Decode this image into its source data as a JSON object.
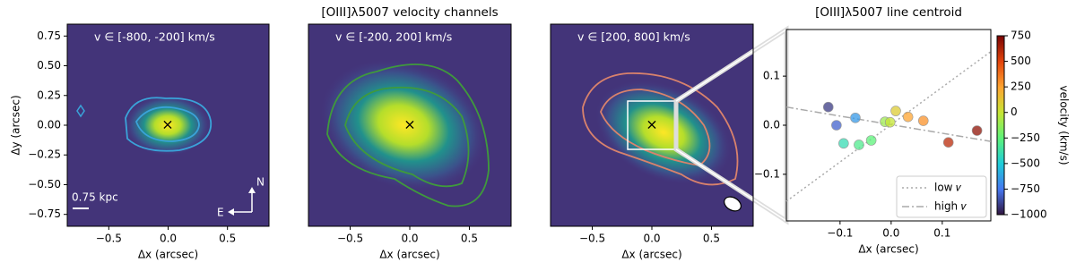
{
  "chart_data": [
    {
      "type": "image",
      "annotation": "v ∈ [-800, -200] km/s",
      "xlabel": "Δx (arcsec)",
      "ylabel": "Δy (arcsec)",
      "xlim": [
        -0.85,
        0.85
      ],
      "ylim": [
        -0.85,
        0.85
      ],
      "xticks": [
        {
          "value": -0.5,
          "label": "−0.5"
        },
        {
          "value": 0,
          "label": "0.0"
        },
        0.5
      ],
      "yticks": [
        {
          "value": -0.75,
          "label": "−0.75"
        },
        {
          "value": -0.5,
          "label": "−0.50"
        },
        {
          "value": -0.25,
          "label": "−0.25"
        },
        {
          "value": 0,
          "label": "0.00"
        },
        0.25,
        {
          "value": 0.5,
          "label": "0.50"
        },
        0.75
      ],
      "scale_bar": "0.75 kpc",
      "compass": [
        "N",
        "E"
      ],
      "contour_color": "#3aa3d9"
    },
    {
      "type": "image",
      "title": "[OIII]λ5007 velocity channels",
      "annotation": "v ∈ [-200, 200] km/s",
      "xlabel": "Δx (arcsec)",
      "xlim": [
        -0.85,
        0.85
      ],
      "ylim": [
        -0.85,
        0.85
      ],
      "xticks": [
        {
          "value": -0.5,
          "label": "−0.5"
        },
        {
          "value": 0,
          "label": "0.0"
        },
        0.5
      ],
      "contour_color": "#3f9a3c"
    },
    {
      "type": "image",
      "annotation": "v ∈ [200, 800] km/s",
      "xlabel": "Δx (arcsec)",
      "xlim": [
        -0.85,
        0.85
      ],
      "ylim": [
        -0.85,
        0.85
      ],
      "xticks": [
        {
          "value": -0.5,
          "label": "−0.5"
        },
        {
          "value": 0,
          "label": "0.0"
        },
        0.5
      ],
      "contour_color": "#d9826c"
    },
    {
      "type": "scatter",
      "title": "[OIII]λ5007 line centroid",
      "xlabel": "Δx (arcsec)",
      "xlim": [
        -0.205,
        0.195
      ],
      "ylim": [
        -0.195,
        0.195
      ],
      "xticks": [
        {
          "value": -0.1,
          "label": "−0.1"
        },
        {
          "value": 0,
          "label": "0.0"
        },
        0.1
      ],
      "yticks": [
        {
          "value": -0.1,
          "label": "−0.1"
        },
        {
          "value": 0,
          "label": "0.0"
        },
        0.1
      ],
      "x": [
        -0.123,
        -0.107,
        -0.07,
        -0.093,
        -0.063,
        -0.039,
        -0.012,
        -0.002,
        0.009,
        0.033,
        0.063,
        0.112,
        0.168
      ],
      "y": [
        0.037,
        0.0,
        0.015,
        -0.037,
        -0.04,
        -0.031,
        0.007,
        0.006,
        0.029,
        0.017,
        0.009,
        -0.035,
        -0.011
      ],
      "values": [
        -900,
        -800,
        -650,
        -400,
        -300,
        -250,
        -100,
        0,
        100,
        250,
        300,
        600,
        700
      ],
      "colorbar": {
        "label": "velocity (km/s)",
        "lim": [
          -1000,
          750
        ],
        "ticks": [
          {
            "value": -1000,
            "label": "−1000"
          },
          {
            "value": -750,
            "label": "−750"
          },
          {
            "value": -500,
            "label": "−500"
          },
          {
            "value": -250,
            "label": "−250"
          },
          0,
          250,
          500,
          750
        ],
        "colormap": [
          "#30123b",
          "#4676f0",
          "#1ecbd9",
          "#5cf27a",
          "#c6e534",
          "#fea431",
          "#e4440b",
          "#7a0403"
        ]
      },
      "lines": [
        {
          "name": "low 𝑣",
          "x": [
            -0.205,
            0.195
          ],
          "y": [
            -0.155,
            0.15
          ],
          "dash": "2,3"
        },
        {
          "name": "high 𝑣",
          "x": [
            -0.205,
            0.195
          ],
          "y": [
            0.037,
            -0.033
          ],
          "dash": "8,3,2,3"
        }
      ],
      "legend": "lower right"
    }
  ]
}
